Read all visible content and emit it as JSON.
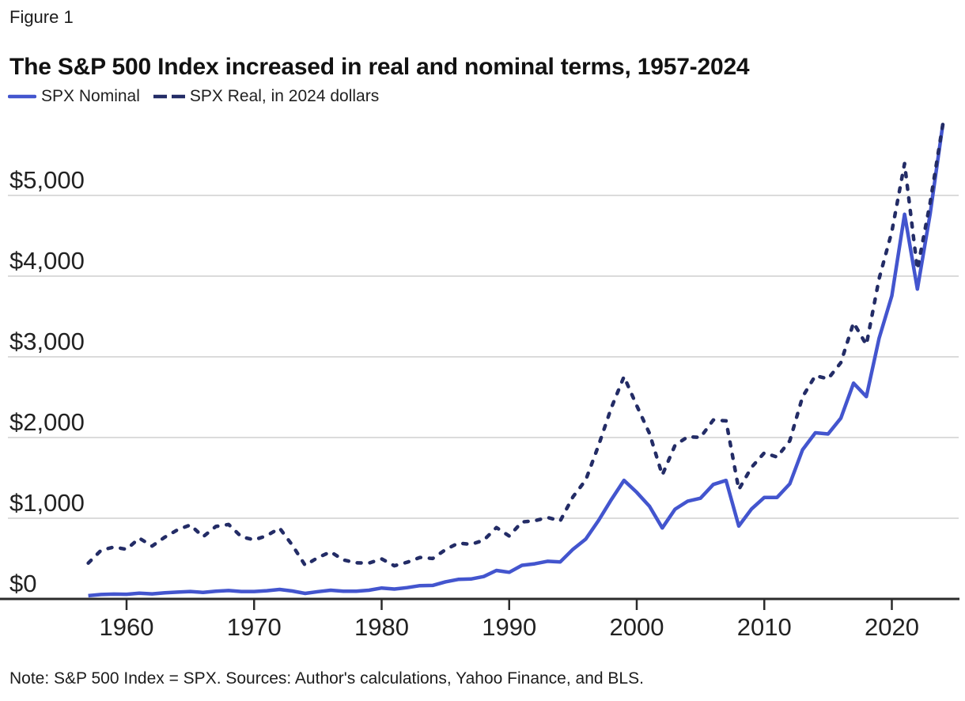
{
  "figure_label": "Figure 1",
  "title": "The S&P 500 Index increased in real and nominal terms, 1957-2024",
  "note": "Note: S&P 500 Index = SPX. Sources: Author's calculations, Yahoo Finance, and BLS.",
  "legend_items": [
    {
      "label": "SPX Nominal",
      "style": "solid",
      "color": "#4355CE"
    },
    {
      "label": "SPX Real, in 2024 dollars",
      "style": "dashed",
      "color": "#232C66"
    }
  ],
  "colors": {
    "nominal_line": "#4355CE",
    "real_line": "#232C66",
    "gridline": "#DBDBDB",
    "axis": "#2B2B2B",
    "tick_text": "#222222",
    "background": "#FFFFFF"
  },
  "chart_data": {
    "type": "line",
    "title": "The S&P 500 Index increased in real and nominal terms, 1957-2024",
    "xlabel": "",
    "ylabel": "",
    "grid": "horizontal",
    "legend_position": "top-left",
    "xlim": [
      1957,
      2024
    ],
    "ylim": [
      0,
      5950
    ],
    "x_ticks": [
      1960,
      1970,
      1980,
      1990,
      2000,
      2010,
      2020
    ],
    "y_ticks": [
      0,
      1000,
      2000,
      3000,
      4000,
      5000
    ],
    "y_tick_labels": [
      "$0",
      "$1,000",
      "$2,000",
      "$3,000",
      "$4,000",
      "$5,000"
    ],
    "x": [
      1957,
      1958,
      1959,
      1960,
      1961,
      1962,
      1963,
      1964,
      1965,
      1966,
      1967,
      1968,
      1969,
      1970,
      1971,
      1972,
      1973,
      1974,
      1975,
      1976,
      1977,
      1978,
      1979,
      1980,
      1981,
      1982,
      1983,
      1984,
      1985,
      1986,
      1987,
      1988,
      1989,
      1990,
      1991,
      1992,
      1993,
      1994,
      1995,
      1996,
      1997,
      1998,
      1999,
      2000,
      2001,
      2002,
      2003,
      2004,
      2005,
      2006,
      2007,
      2008,
      2009,
      2010,
      2011,
      2012,
      2013,
      2014,
      2015,
      2016,
      2017,
      2018,
      2019,
      2020,
      2021,
      2022,
      2023,
      2024
    ],
    "series": [
      {
        "name": "SPX Nominal",
        "style": "solid",
        "color": "#4355CE",
        "values": [
          39.99,
          55.21,
          59.89,
          58.11,
          71.55,
          63.1,
          75.02,
          84.75,
          92.43,
          80.33,
          96.47,
          103.86,
          92.06,
          92.15,
          102.09,
          118.05,
          97.55,
          68.56,
          90.19,
          107.46,
          95.1,
          96.11,
          107.94,
          135.76,
          122.55,
          140.64,
          164.93,
          167.24,
          211.28,
          242.17,
          247.08,
          277.72,
          353.4,
          330.22,
          417.09,
          435.71,
          466.45,
          459.27,
          615.93,
          740.74,
          970.43,
          1229.23,
          1469.25,
          1320.28,
          1148.08,
          879.82,
          1111.92,
          1211.92,
          1248.29,
          1418.3,
          1468.36,
          903.25,
          1115.1,
          1257.64,
          1257.6,
          1426.19,
          1848.36,
          2058.9,
          2043.94,
          2238.83,
          2673.61,
          2506.85,
          3230.78,
          3756.07,
          4766.18,
          3839.5,
          4769.83,
          5881.63
        ]
      },
      {
        "name": "SPX Real, in 2024 dollars",
        "style": "dashed",
        "color": "#232C66",
        "values": [
          444,
          603,
          643,
          615,
          753,
          655,
          766,
          857,
          917,
          771,
          898,
          923,
          771,
          731,
          784,
          877,
          666,
          417,
          513,
          583,
          483,
          448,
          444,
          496,
          411,
          455,
          514,
          501,
          610,
          692,
          676,
          727,
          884,
          779,
          954,
          969,
          1010,
          968,
          1266,
          1474,
          1899,
          2367,
          2755,
          2395,
          2051,
          1535,
          1904,
          2010,
          2002,
          2218,
          2207,
          1356,
          1630,
          1811,
          1758,
          1960,
          2504,
          2767,
          2727,
          2927,
          3423,
          3149,
          3969,
          4551,
          5395,
          4083,
          4908,
          5882
        ]
      }
    ]
  }
}
